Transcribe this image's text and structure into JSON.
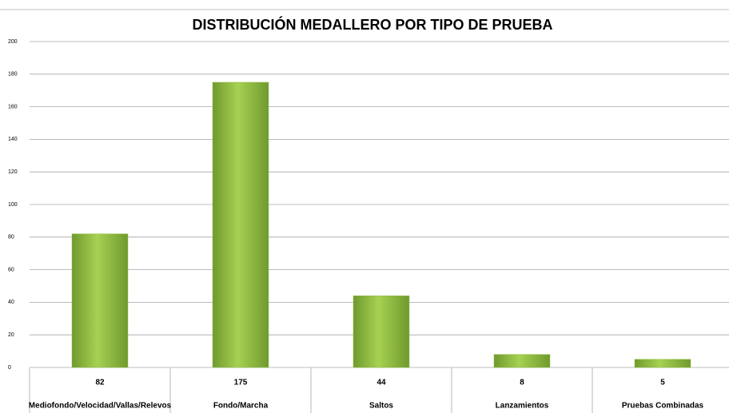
{
  "chart_data": {
    "type": "bar",
    "title": "DISTRIBUCIÓN MEDALLERO POR TIPO DE PRUEBA",
    "categories": [
      "Mediofondo/Velocidad/Vallas/Relevos",
      "Fondo/Marcha",
      "Saltos",
      "Lanzamientos",
      "Pruebas Combinadas"
    ],
    "values": [
      82,
      175,
      44,
      8,
      5
    ],
    "color": "#92c042",
    "ylim": [
      0,
      200
    ],
    "yticks": [
      0,
      20,
      40,
      60,
      80,
      100,
      120,
      140,
      160,
      180,
      200
    ],
    "grid": true
  }
}
